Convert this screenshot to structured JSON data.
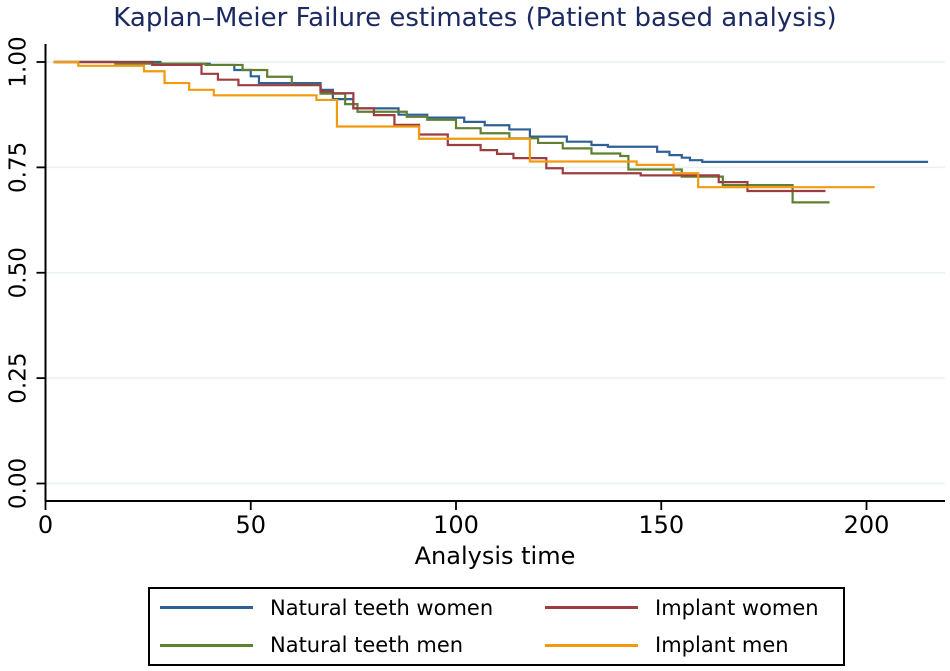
{
  "title": {
    "text": "Kaplan–Meier Failure estimates (Patient based analysis)",
    "color": "#1b2a63"
  },
  "chart_data": {
    "type": "line",
    "subtype": "kaplan-meier-step",
    "title": "Kaplan–Meier Failure estimates (Patient based analysis)",
    "xlabel": "Analysis time",
    "ylabel": "",
    "xlim": [
      0,
      219
    ],
    "ylim": [
      0,
      1.0
    ],
    "x_ticks": [
      0,
      50,
      100,
      150,
      200
    ],
    "x_tick_labels": [
      "0",
      "50",
      "100",
      "150",
      "200"
    ],
    "y_ticks": [
      0,
      0.25,
      0.5,
      0.75,
      1.0
    ],
    "y_tick_labels": [
      "0.00",
      "0.25",
      "0.50",
      "0.75",
      "1.00"
    ],
    "grid": "horizontal",
    "gridline_color": "#e8f0f2",
    "axis_color": "#000000",
    "legend_position": "bottom",
    "series": [
      {
        "name": "Natural teeth women",
        "color": "#2e6095",
        "points": [
          [
            2,
            1.0
          ],
          [
            28,
            0.996
          ],
          [
            40,
            0.993
          ],
          [
            46,
            0.981
          ],
          [
            50,
            0.966
          ],
          [
            52,
            0.95
          ],
          [
            67,
            0.934
          ],
          [
            70,
            0.912
          ],
          [
            75,
            0.89
          ],
          [
            86,
            0.875
          ],
          [
            93,
            0.868
          ],
          [
            102,
            0.858
          ],
          [
            107,
            0.85
          ],
          [
            113,
            0.84
          ],
          [
            118,
            0.823
          ],
          [
            127,
            0.811
          ],
          [
            133,
            0.803
          ],
          [
            137,
            0.799
          ],
          [
            149,
            0.787
          ],
          [
            152,
            0.779
          ],
          [
            155,
            0.773
          ],
          [
            157,
            0.767
          ],
          [
            160,
            0.763
          ],
          [
            215,
            0.763
          ]
        ]
      },
      {
        "name": "Natural teeth men",
        "color": "#5f8032",
        "points": [
          [
            2,
            1.0
          ],
          [
            17,
            0.996
          ],
          [
            39,
            0.993
          ],
          [
            48,
            0.981
          ],
          [
            54,
            0.965
          ],
          [
            60,
            0.946
          ],
          [
            67,
            0.925
          ],
          [
            73,
            0.9
          ],
          [
            76,
            0.882
          ],
          [
            88,
            0.87
          ],
          [
            93,
            0.863
          ],
          [
            100,
            0.843
          ],
          [
            106,
            0.831
          ],
          [
            113,
            0.819
          ],
          [
            120,
            0.808
          ],
          [
            126,
            0.795
          ],
          [
            133,
            0.783
          ],
          [
            140,
            0.777
          ],
          [
            142,
            0.745
          ],
          [
            155,
            0.728
          ],
          [
            165,
            0.708
          ],
          [
            182,
            0.667
          ],
          [
            191,
            0.667
          ]
        ]
      },
      {
        "name": "Implant women",
        "color": "#9c3d42",
        "points": [
          [
            2,
            1.0
          ],
          [
            26,
            0.993
          ],
          [
            38,
            0.972
          ],
          [
            42,
            0.958
          ],
          [
            47,
            0.945
          ],
          [
            67,
            0.93
          ],
          [
            70,
            0.926
          ],
          [
            75,
            0.89
          ],
          [
            80,
            0.874
          ],
          [
            85,
            0.851
          ],
          [
            91,
            0.828
          ],
          [
            98,
            0.803
          ],
          [
            106,
            0.791
          ],
          [
            110,
            0.782
          ],
          [
            114,
            0.772
          ],
          [
            122,
            0.748
          ],
          [
            126,
            0.736
          ],
          [
            145,
            0.731
          ],
          [
            164,
            0.715
          ],
          [
            171,
            0.694
          ],
          [
            190,
            0.694
          ]
        ]
      },
      {
        "name": "Implant men",
        "color": "#f2990d",
        "points": [
          [
            2,
            1.0
          ],
          [
            8,
            0.991
          ],
          [
            24,
            0.978
          ],
          [
            29,
            0.95
          ],
          [
            35,
            0.934
          ],
          [
            41,
            0.921
          ],
          [
            66,
            0.91
          ],
          [
            71,
            0.847
          ],
          [
            91,
            0.818
          ],
          [
            118,
            0.764
          ],
          [
            144,
            0.756
          ],
          [
            153,
            0.736
          ],
          [
            159,
            0.703
          ],
          [
            202,
            0.703
          ]
        ]
      }
    ]
  },
  "legend": {
    "items": [
      {
        "label": "Natural teeth women",
        "color": "#2e6095"
      },
      {
        "label": "Implant women",
        "color": "#9c3d42"
      },
      {
        "label": "Natural teeth men",
        "color": "#5f8032"
      },
      {
        "label": "Implant men",
        "color": "#f2990d"
      }
    ]
  }
}
